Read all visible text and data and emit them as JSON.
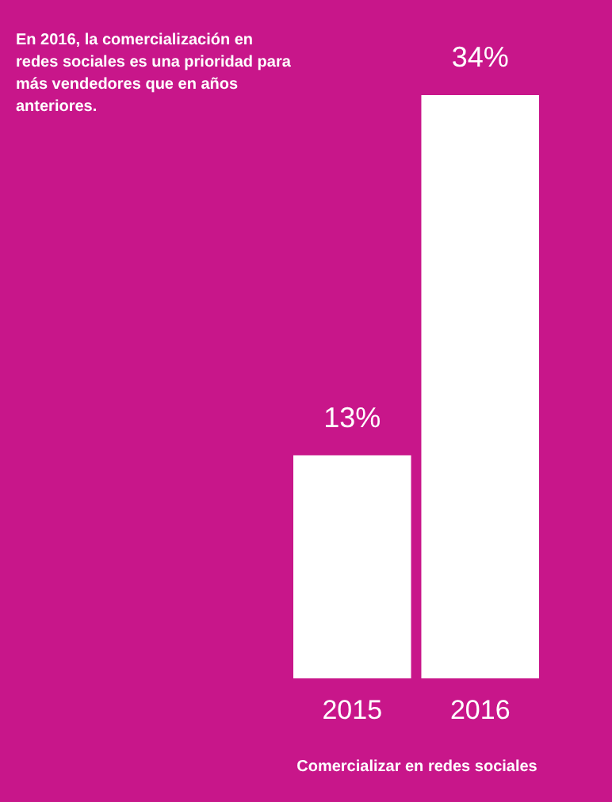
{
  "chart_data": {
    "type": "bar",
    "title": "En 2016, la comercialización en redes sociales es una prioridad para más vendedores que en años anteriores.",
    "xlabel": "Comercializar en redes sociales",
    "categories": [
      "2015",
      "2016"
    ],
    "values": [
      13,
      34
    ],
    "colors": [
      "#ffffff",
      "#ffffff"
    ],
    "value_labels": [
      "13%",
      "34%"
    ]
  }
}
